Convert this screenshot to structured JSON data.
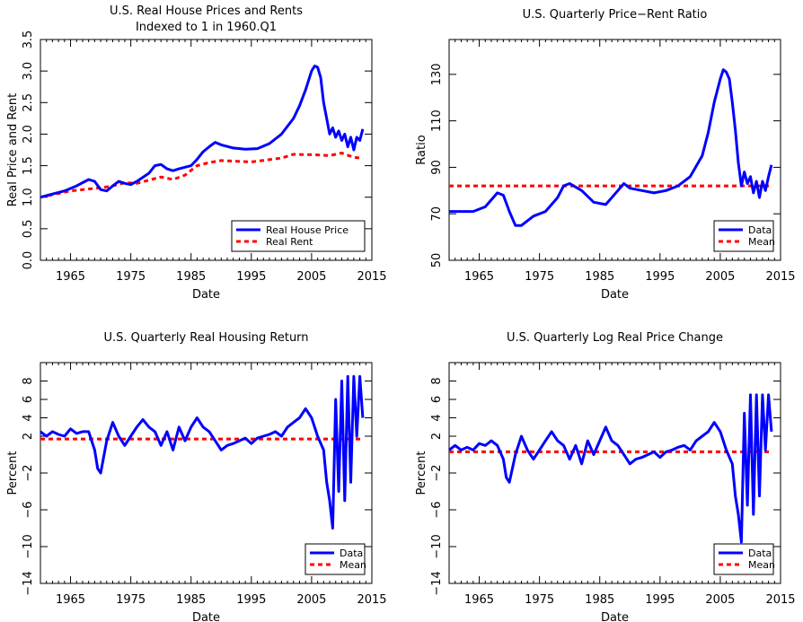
{
  "chart_data": [
    {
      "type": "line",
      "title": "U.S. Real House Prices and Rents",
      "subtitle": "Indexed to 1 in 1960.Q1",
      "xlabel": "Date",
      "ylabel": "Real Price and Rent",
      "xlim": [
        1960,
        2015
      ],
      "ylim": [
        0.0,
        3.5
      ],
      "xticks": [
        1965,
        1975,
        1985,
        1995,
        2005,
        2015
      ],
      "yticks": [
        "0.0",
        "0.5",
        "1.0",
        "1.5",
        "2.0",
        "2.5",
        "3.0",
        "3.5"
      ],
      "legend_position": "bottom-right",
      "grid": false,
      "series": [
        {
          "name": "Real House Price",
          "color": "#0000ff",
          "style": "solid",
          "x": [
            1960,
            1962,
            1964,
            1966,
            1968,
            1969,
            1970,
            1971,
            1972,
            1973,
            1974,
            1975,
            1976,
            1978,
            1979,
            1980,
            1981,
            1982,
            1983,
            1985,
            1986,
            1987,
            1988,
            1989,
            1990,
            1992,
            1994,
            1996,
            1998,
            2000,
            2002,
            2003,
            2004,
            2005,
            2005.5,
            2006,
            2006.5,
            2007,
            2007.5,
            2008,
            2008.5,
            2009,
            2009.5,
            2010,
            2010.5,
            2011,
            2011.5,
            2012,
            2012.5,
            2013,
            2013.5
          ],
          "y": [
            1.0,
            1.05,
            1.1,
            1.18,
            1.28,
            1.25,
            1.12,
            1.1,
            1.18,
            1.25,
            1.22,
            1.2,
            1.25,
            1.38,
            1.5,
            1.52,
            1.45,
            1.42,
            1.45,
            1.5,
            1.6,
            1.72,
            1.8,
            1.87,
            1.83,
            1.78,
            1.76,
            1.77,
            1.85,
            2.0,
            2.25,
            2.45,
            2.7,
            3.0,
            3.08,
            3.06,
            2.9,
            2.5,
            2.25,
            2.0,
            2.1,
            1.95,
            2.05,
            1.9,
            2.0,
            1.8,
            1.95,
            1.75,
            1.95,
            1.9,
            2.08
          ]
        },
        {
          "name": "Real Rent",
          "color": "#ff0000",
          "style": "dashed",
          "x": [
            1960,
            1965,
            1970,
            1972,
            1974,
            1976,
            1978,
            1980,
            1982,
            1984,
            1986,
            1988,
            1990,
            1995,
            2000,
            2002,
            2006,
            2008,
            2010,
            2012,
            2013.5
          ],
          "y": [
            1.0,
            1.1,
            1.15,
            1.18,
            1.23,
            1.22,
            1.27,
            1.32,
            1.28,
            1.35,
            1.5,
            1.55,
            1.58,
            1.56,
            1.62,
            1.68,
            1.67,
            1.66,
            1.7,
            1.63,
            1.62
          ]
        }
      ]
    },
    {
      "type": "line",
      "title": "U.S. Quarterly Price−Rent Ratio",
      "xlabel": "Date",
      "ylabel": "Ratio",
      "xlim": [
        1960,
        2015
      ],
      "ylim": [
        50,
        145
      ],
      "xticks": [
        1965,
        1975,
        1985,
        1995,
        2005,
        2015
      ],
      "yticks": [
        "50",
        "70",
        "90",
        "110",
        "130"
      ],
      "legend_position": "bottom-right",
      "grid": false,
      "series": [
        {
          "name": "Data",
          "color": "#0000ff",
          "style": "solid",
          "x": [
            1960,
            1962,
            1964,
            1966,
            1968,
            1969,
            1970,
            1971,
            1972,
            1974,
            1976,
            1978,
            1979,
            1980,
            1982,
            1984,
            1986,
            1988,
            1989,
            1990,
            1992,
            1994,
            1996,
            1998,
            2000,
            2002,
            2003,
            2004,
            2005,
            2005.5,
            2006,
            2006.5,
            2007,
            2007.5,
            2008,
            2008.5,
            2009,
            2009.5,
            2010,
            2010.5,
            2011,
            2011.5,
            2012,
            2012.5,
            2013,
            2013.5
          ],
          "y": [
            71,
            71,
            71,
            73,
            79,
            78,
            71,
            65,
            65,
            69,
            71,
            77,
            82,
            83,
            80,
            75,
            74,
            80,
            83,
            81,
            80,
            79,
            80,
            82,
            86,
            95,
            105,
            118,
            128,
            132,
            131,
            128,
            118,
            106,
            92,
            82,
            88,
            83,
            86,
            79,
            84,
            77,
            84,
            80,
            86,
            91
          ]
        },
        {
          "name": "Mean",
          "color": "#ff0000",
          "style": "dashed",
          "x": [
            1960,
            2013.5
          ],
          "y": [
            82,
            82
          ]
        }
      ]
    },
    {
      "type": "line",
      "title": "U.S. Quarterly Real Housing Return",
      "xlabel": "Date",
      "ylabel": "Percent",
      "xlim": [
        1960,
        2015
      ],
      "ylim": [
        -14,
        10
      ],
      "xticks": [
        1965,
        1975,
        1985,
        1995,
        2005,
        2015
      ],
      "yticks": [
        "−14",
        "−10",
        "−6",
        "−2",
        "2",
        "4",
        "6",
        "8"
      ],
      "legend_position": "bottom-right",
      "grid": false,
      "series": [
        {
          "name": "Data",
          "color": "#0000ff",
          "style": "solid",
          "x": [
            1960,
            1961,
            1962,
            1963,
            1964,
            1965,
            1966,
            1967,
            1968,
            1969,
            1969.5,
            1970,
            1971,
            1972,
            1973,
            1974,
            1975,
            1976,
            1977,
            1978,
            1979,
            1980,
            1981,
            1982,
            1983,
            1984,
            1985,
            1986,
            1987,
            1988,
            1989,
            1990,
            1991,
            1992,
            1993,
            1994,
            1995,
            1996,
            1997,
            1998,
            1999,
            2000,
            2001,
            2002,
            2003,
            2004,
            2005,
            2006,
            2007,
            2007.5,
            2008,
            2008.5,
            2009,
            2009.5,
            2010,
            2010.5,
            2011,
            2011.5,
            2012,
            2012.5,
            2013,
            2013.5
          ],
          "y": [
            2.5,
            2.0,
            2.5,
            2.2,
            2.0,
            2.8,
            2.3,
            2.5,
            2.5,
            0.5,
            -1.5,
            -2.0,
            1.5,
            3.5,
            2.0,
            1.0,
            2.0,
            3.0,
            3.8,
            3.0,
            2.5,
            1.0,
            2.5,
            0.5,
            3.0,
            1.5,
            3.0,
            4.0,
            3.0,
            2.5,
            1.5,
            0.5,
            1.0,
            1.2,
            1.5,
            1.8,
            1.2,
            1.8,
            2.0,
            2.2,
            2.5,
            2.0,
            3.0,
            3.5,
            4.0,
            5.0,
            4.0,
            2.0,
            0.5,
            -3.0,
            -5.0,
            -8.0,
            6.0,
            -4.0,
            8.0,
            -5.0,
            8.5,
            -3.0,
            8.5,
            2.0,
            8.5,
            4.0
          ]
        },
        {
          "name": "Mean",
          "color": "#ff0000",
          "style": "dashed",
          "x": [
            1960,
            2013.5
          ],
          "y": [
            1.7,
            1.7
          ]
        }
      ]
    },
    {
      "type": "line",
      "title": "U.S. Quarterly Log Real Price Change",
      "xlabel": "Date",
      "ylabel": "Percent",
      "xlim": [
        1960,
        2015
      ],
      "ylim": [
        -14,
        10
      ],
      "xticks": [
        1965,
        1975,
        1985,
        1995,
        2005,
        2015
      ],
      "yticks": [
        "−14",
        "−10",
        "−6",
        "−2",
        "2",
        "4",
        "6",
        "8"
      ],
      "legend_position": "bottom-right",
      "grid": false,
      "series": [
        {
          "name": "Data",
          "color": "#0000ff",
          "style": "solid",
          "x": [
            1960,
            1961,
            1962,
            1963,
            1964,
            1965,
            1966,
            1967,
            1968,
            1969,
            1969.5,
            1970,
            1971,
            1972,
            1973,
            1974,
            1975,
            1976,
            1977,
            1978,
            1979,
            1980,
            1981,
            1982,
            1983,
            1984,
            1985,
            1986,
            1987,
            1988,
            1989,
            1990,
            1991,
            1992,
            1993,
            1994,
            1995,
            1996,
            1997,
            1998,
            1999,
            2000,
            2001,
            2002,
            2003,
            2004,
            2005,
            2006,
            2007,
            2007.5,
            2008,
            2008.5,
            2009,
            2009.5,
            2010,
            2010.5,
            2011,
            2011.5,
            2012,
            2012.5,
            2013,
            2013.5
          ],
          "y": [
            0.5,
            1.0,
            0.5,
            0.8,
            0.5,
            1.2,
            1.0,
            1.5,
            1.0,
            -0.5,
            -2.5,
            -3.0,
            0.0,
            2.0,
            0.5,
            -0.5,
            0.5,
            1.5,
            2.5,
            1.5,
            1.0,
            -0.5,
            1.0,
            -1.0,
            1.5,
            0.0,
            1.5,
            3.0,
            1.5,
            1.0,
            0.0,
            -1.0,
            -0.5,
            -0.3,
            0.0,
            0.3,
            -0.3,
            0.3,
            0.5,
            0.8,
            1.0,
            0.5,
            1.5,
            2.0,
            2.5,
            3.5,
            2.5,
            0.5,
            -1.0,
            -4.5,
            -6.5,
            -9.5,
            4.5,
            -5.5,
            6.5,
            -6.5,
            6.5,
            -4.5,
            6.5,
            0.5,
            6.5,
            2.5
          ]
        },
        {
          "name": "Mean",
          "color": "#ff0000",
          "style": "dashed",
          "x": [
            1960,
            2013.5
          ],
          "y": [
            0.3,
            0.3
          ]
        }
      ]
    }
  ]
}
